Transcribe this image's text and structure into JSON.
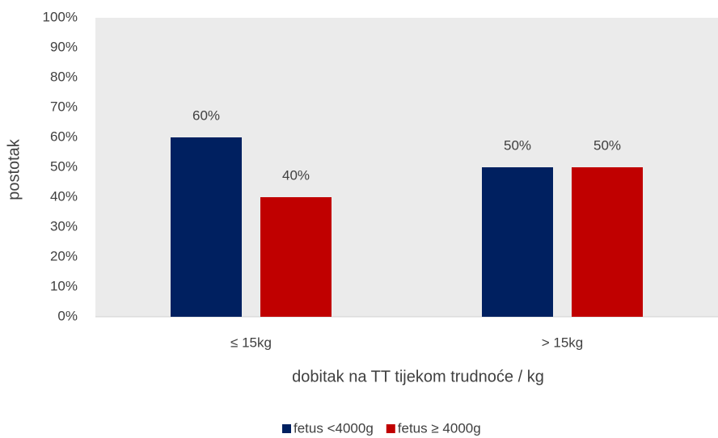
{
  "chart_data": {
    "type": "bar",
    "x_label": "dobitak na TT tijekom trudnoće / kg",
    "y_label": "postotak",
    "categories": [
      "≤ 15kg",
      "> 15kg"
    ],
    "series": [
      {
        "name": "fetus <4000g",
        "color": "#002060",
        "values": [
          60,
          50
        ],
        "value_labels": [
          "60%",
          "50%"
        ]
      },
      {
        "name": "fetus ≥ 4000g",
        "color": "#c00000",
        "values": [
          40,
          50
        ],
        "value_labels": [
          "40%",
          "50%"
        ]
      }
    ],
    "ylim": [
      0,
      100
    ],
    "yticks": [
      {
        "value": 0,
        "label": "0%"
      },
      {
        "value": 10,
        "label": "10%"
      },
      {
        "value": 20,
        "label": "20%"
      },
      {
        "value": 30,
        "label": "30%"
      },
      {
        "value": 40,
        "label": "40%"
      },
      {
        "value": 50,
        "label": "50%"
      },
      {
        "value": 60,
        "label": "60%"
      },
      {
        "value": 70,
        "label": "70%"
      },
      {
        "value": 80,
        "label": "80%"
      },
      {
        "value": 90,
        "label": "90%"
      },
      {
        "value": 100,
        "label": "100%"
      }
    ],
    "grid": false,
    "legend": "bottom"
  }
}
